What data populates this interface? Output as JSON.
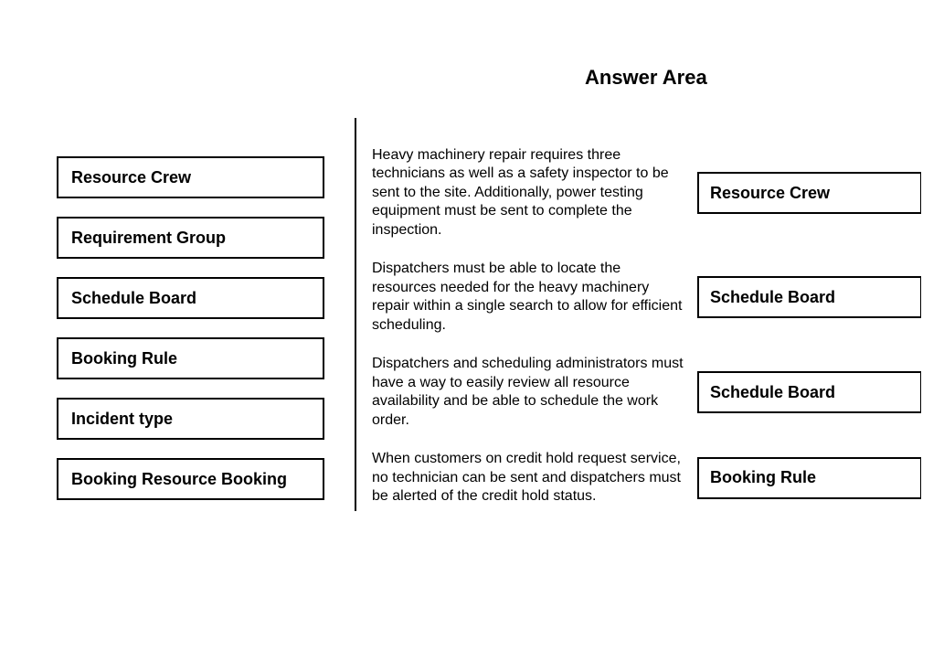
{
  "title": "Answer Area",
  "source_options": [
    "Resource Crew",
    "Requirement Group",
    "Schedule Board",
    "Booking Rule",
    "Incident type",
    "Booking Resource Booking"
  ],
  "rows": [
    {
      "scenario": "Heavy machinery repair requires three technicians as well as a safety inspector to be sent to the site. Additionally, power testing equipment must be sent to complete the inspection.",
      "answer": "Resource Crew"
    },
    {
      "scenario": "Dispatchers must be able to locate the resources needed for the heavy machinery repair within a single search to allow for efficient scheduling.",
      "answer": "Schedule Board"
    },
    {
      "scenario": "Dispatchers and scheduling administrators must have a way to easily review all resource availability and be able to schedule the work order.",
      "answer": "Schedule Board"
    },
    {
      "scenario": "When customers on credit hold request service, no technician can be sent and dispatchers must be alerted of the credit hold status.",
      "answer": "Booking Rule"
    }
  ]
}
